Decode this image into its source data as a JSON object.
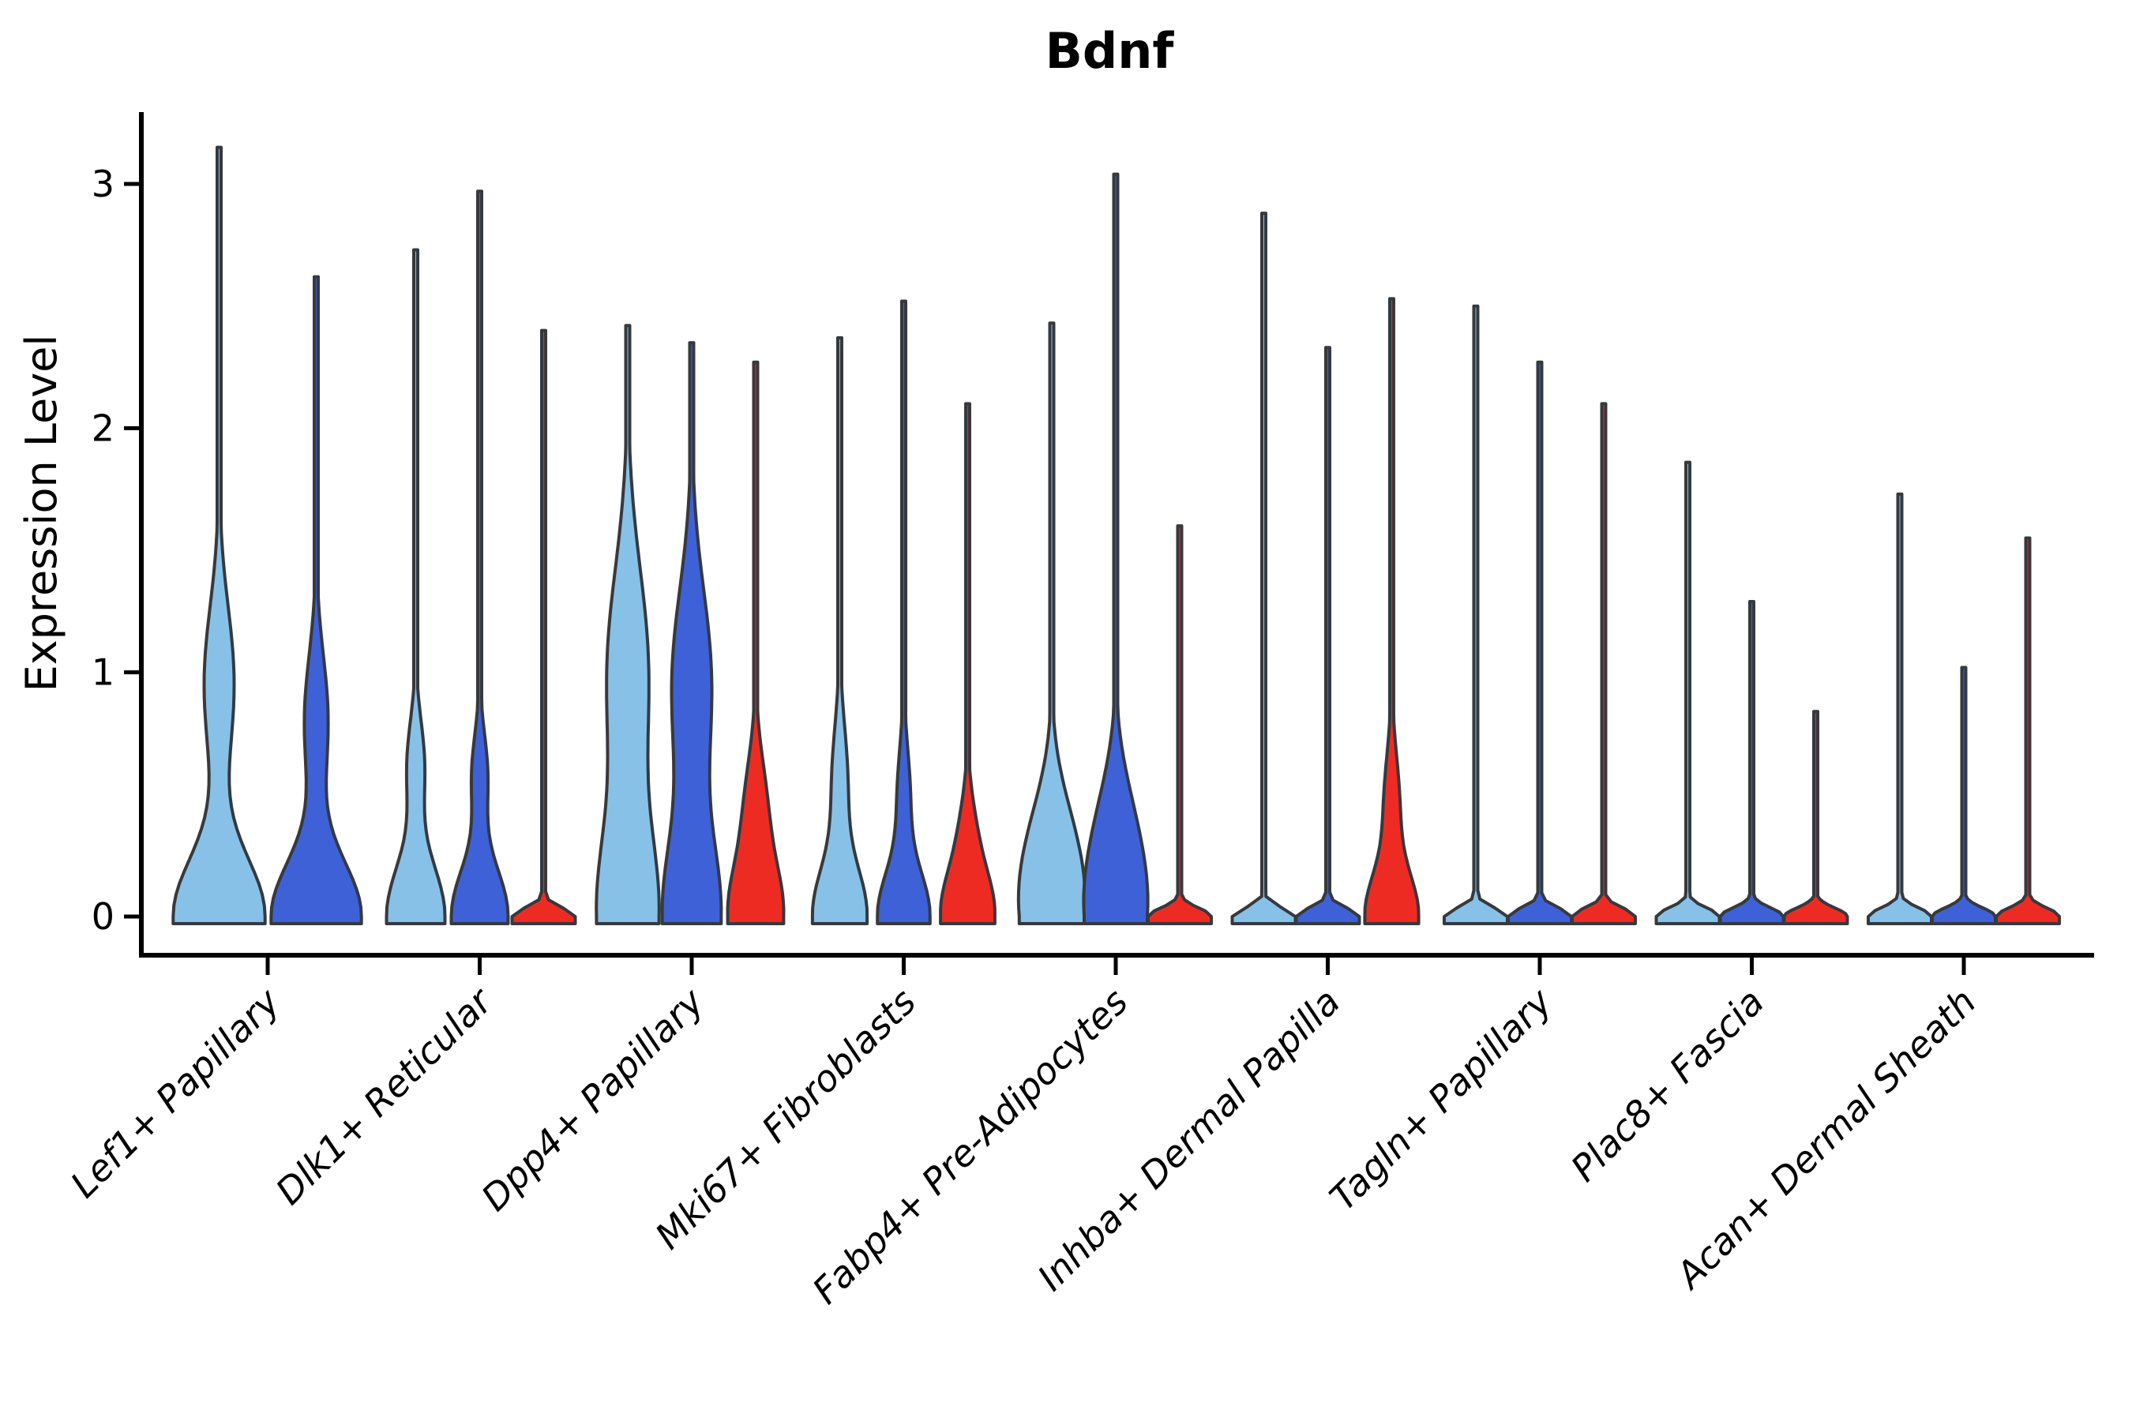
{
  "title": "Bdnf",
  "ylabel": "Expression Level",
  "colors": {
    "background": "#ffffff",
    "axis": "#000000",
    "violin_outline": "#36393e",
    "split_lightblue": "#87c1e7",
    "split_darkblue": "#3e61d8",
    "split_red": "#ee2b23"
  },
  "chart_data": {
    "type": "violin",
    "title": "Bdnf",
    "xlabel": "",
    "ylabel": "Expression Level",
    "ylim": [
      0,
      3.3
    ],
    "y_ticks": [
      "0",
      "1",
      "2",
      "3"
    ],
    "grid": "off",
    "legend": "none",
    "x_tick_rotation_deg": 45,
    "categories": [
      "Lef1+ Papillary",
      "Dlk1+ Reticular",
      "Dpp4+ Papillary",
      "Mki67+ Fibroblasts",
      "Fabp4+ Pre-Adipocytes",
      "Inhba+ Dermal Papilla",
      "Tagln+ Papillary",
      "Plac8+ Fascia",
      "Acan+ Dermal Sheath"
    ],
    "series_order": [
      "lightblue",
      "darkblue",
      "red"
    ],
    "groups": [
      {
        "category": "Lef1+ Papillary",
        "violins": [
          {
            "split": "lightblue",
            "max_expression": 3.15,
            "base_hw": 58,
            "base_spread": 0.34,
            "bulge_v": 0.95,
            "bulge_hw": 19,
            "bulge_spread": 0.45
          },
          {
            "split": "darkblue",
            "max_expression": 2.62,
            "base_hw": 57,
            "base_spread": 0.32,
            "bulge_v": 0.8,
            "bulge_hw": 15,
            "bulge_spread": 0.38
          }
        ]
      },
      {
        "category": "Dlk1+ Reticular",
        "violins": [
          {
            "split": "lightblue",
            "max_expression": 2.73,
            "base_hw": 37,
            "base_spread": 0.3,
            "bulge_v": 0.62,
            "bulge_hw": 11,
            "bulge_spread": 0.26
          },
          {
            "split": "darkblue",
            "max_expression": 2.97,
            "base_hw": 36,
            "base_spread": 0.28,
            "bulge_v": 0.58,
            "bulge_hw": 10,
            "bulge_spread": 0.24
          },
          {
            "split": "red",
            "max_expression": 2.4,
            "base_hw": 40,
            "base_spread": 0.05,
            "bulge_v": 0,
            "bulge_hw": 0,
            "bulge_spread": 1
          }
        ]
      },
      {
        "category": "Dpp4+ Papillary",
        "violins": [
          {
            "split": "lightblue",
            "max_expression": 2.42,
            "base_hw": 38,
            "base_spread": 0.5,
            "bulge_v": 1.0,
            "bulge_hw": 26,
            "bulge_spread": 0.6
          },
          {
            "split": "darkblue",
            "max_expression": 2.35,
            "base_hw": 36,
            "base_spread": 0.45,
            "bulge_v": 0.95,
            "bulge_hw": 25,
            "bulge_spread": 0.55
          },
          {
            "split": "red",
            "max_expression": 2.27,
            "base_hw": 34,
            "base_spread": 0.3,
            "bulge_v": 0.45,
            "bulge_hw": 13,
            "bulge_spread": 0.3
          }
        ]
      },
      {
        "category": "Mki67+ Fibroblasts",
        "violins": [
          {
            "split": "lightblue",
            "max_expression": 2.37,
            "base_hw": 34,
            "base_spread": 0.28,
            "bulge_v": 0.55,
            "bulge_hw": 10,
            "bulge_spread": 0.33
          },
          {
            "split": "darkblue",
            "max_expression": 2.52,
            "base_hw": 33,
            "base_spread": 0.26,
            "bulge_v": 0.5,
            "bulge_hw": 8,
            "bulge_spread": 0.28
          },
          {
            "split": "red",
            "max_expression": 2.1,
            "base_hw": 33,
            "base_spread": 0.25,
            "bulge_v": 0.33,
            "bulge_hw": 9,
            "bulge_spread": 0.24
          }
        ]
      },
      {
        "category": "Fabp4+ Pre-Adipocytes",
        "violins": [
          {
            "split": "lightblue",
            "max_expression": 2.43,
            "base_hw": 37,
            "base_spread": 0.4,
            "bulge_v": 0.35,
            "bulge_hw": 13,
            "bulge_spread": 0.33
          },
          {
            "split": "darkblue",
            "max_expression": 3.04,
            "base_hw": 37,
            "base_spread": 0.4,
            "bulge_v": 0.4,
            "bulge_hw": 13,
            "bulge_spread": 0.33
          },
          {
            "split": "red",
            "max_expression": 1.6,
            "base_hw": 40,
            "base_spread": 0.05,
            "bulge_v": 0,
            "bulge_hw": 0,
            "bulge_spread": 1
          }
        ]
      },
      {
        "category": "Inhba+ Dermal Papilla",
        "violins": [
          {
            "split": "lightblue",
            "max_expression": 2.88,
            "base_hw": 40,
            "base_spread": 0.05,
            "bulge_v": 0,
            "bulge_hw": 0,
            "bulge_spread": 1
          },
          {
            "split": "darkblue",
            "max_expression": 2.33,
            "base_hw": 40,
            "base_spread": 0.05,
            "bulge_v": 0,
            "bulge_hw": 0,
            "bulge_spread": 1
          },
          {
            "split": "red",
            "max_expression": 2.53,
            "base_hw": 33,
            "base_spread": 0.24,
            "bulge_v": 0.45,
            "bulge_hw": 10,
            "bulge_spread": 0.3
          }
        ]
      },
      {
        "category": "Tagln+ Papillary",
        "violins": [
          {
            "split": "lightblue",
            "max_expression": 2.5,
            "base_hw": 40,
            "base_spread": 0.05,
            "bulge_v": 0,
            "bulge_hw": 0,
            "bulge_spread": 1
          },
          {
            "split": "darkblue",
            "max_expression": 2.27,
            "base_hw": 40,
            "base_spread": 0.05,
            "bulge_v": 0,
            "bulge_hw": 0,
            "bulge_spread": 1
          },
          {
            "split": "red",
            "max_expression": 2.1,
            "base_hw": 40,
            "base_spread": 0.05,
            "bulge_v": 0,
            "bulge_hw": 0,
            "bulge_spread": 1
          }
        ]
      },
      {
        "category": "Plac8+ Fascia",
        "violins": [
          {
            "split": "lightblue",
            "max_expression": 1.86,
            "base_hw": 40,
            "base_spread": 0.05,
            "bulge_v": 0,
            "bulge_hw": 0,
            "bulge_spread": 1
          },
          {
            "split": "darkblue",
            "max_expression": 1.29,
            "base_hw": 40,
            "base_spread": 0.05,
            "bulge_v": 0,
            "bulge_hw": 0,
            "bulge_spread": 1
          },
          {
            "split": "red",
            "max_expression": 0.84,
            "base_hw": 40,
            "base_spread": 0.05,
            "bulge_v": 0,
            "bulge_hw": 0,
            "bulge_spread": 1
          }
        ]
      },
      {
        "category": "Acan+ Dermal Sheath",
        "violins": [
          {
            "split": "lightblue",
            "max_expression": 1.73,
            "base_hw": 40,
            "base_spread": 0.05,
            "bulge_v": 0,
            "bulge_hw": 0,
            "bulge_spread": 1
          },
          {
            "split": "darkblue",
            "max_expression": 1.02,
            "base_hw": 40,
            "base_spread": 0.05,
            "bulge_v": 0,
            "bulge_hw": 0,
            "bulge_spread": 1
          },
          {
            "split": "red",
            "max_expression": 1.55,
            "base_hw": 40,
            "base_spread": 0.05,
            "bulge_v": 0,
            "bulge_hw": 0,
            "bulge_spread": 1
          }
        ]
      }
    ]
  }
}
